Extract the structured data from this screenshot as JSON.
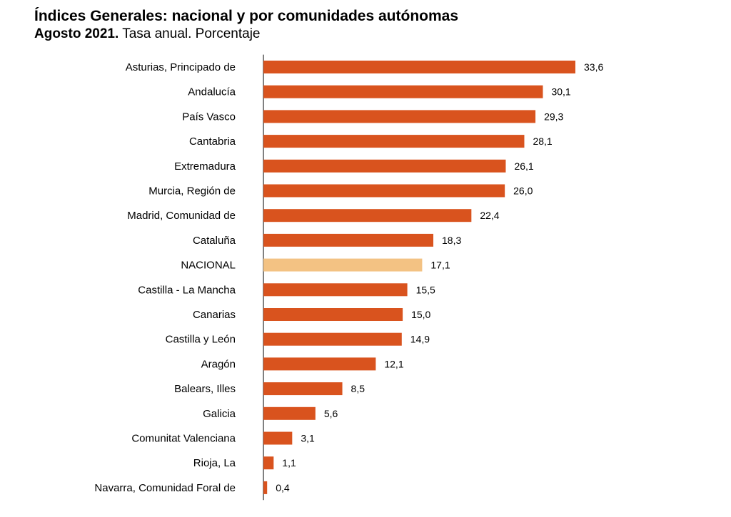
{
  "title": "Índices Generales: nacional y por comunidades autónomas",
  "subtitle_bold": "Agosto 2021.",
  "subtitle_normal": "Tasa anual. Porcentaje",
  "chart_data": {
    "type": "bar",
    "orientation": "horizontal",
    "categories": [
      "Asturias, Principado de",
      "Andalucía",
      "País Vasco",
      "Cantabria",
      "Extremadura",
      "Murcia, Región de",
      "Madrid, Comunidad de",
      "Cataluña",
      "NACIONAL",
      "Castilla - La Mancha",
      "Canarias",
      "Castilla y León",
      "Aragón",
      "Balears, Illes",
      "Galicia",
      "Comunitat Valenciana",
      "Rioja, La",
      "Navarra, Comunidad Foral de"
    ],
    "values": [
      33.6,
      30.1,
      29.3,
      28.1,
      26.1,
      26.0,
      22.4,
      18.3,
      17.1,
      15.5,
      15.0,
      14.9,
      12.1,
      8.5,
      5.6,
      3.1,
      1.1,
      0.4
    ],
    "data_labels": [
      "33,6",
      "30,1",
      "29,3",
      "28,1",
      "26,1",
      "26,0",
      "22,4",
      "18,3",
      "17,1",
      "15,5",
      "15,0",
      "14,9",
      "12,1",
      "8,5",
      "5,6",
      "3,1",
      "1,1",
      "0,4"
    ],
    "highlight_category": "NACIONAL",
    "colors": {
      "bar": "#d9531e",
      "highlight": "#f3c283",
      "axis": "#000000"
    },
    "xlim": [
      0,
      35
    ],
    "grid": false,
    "legend": "none"
  }
}
